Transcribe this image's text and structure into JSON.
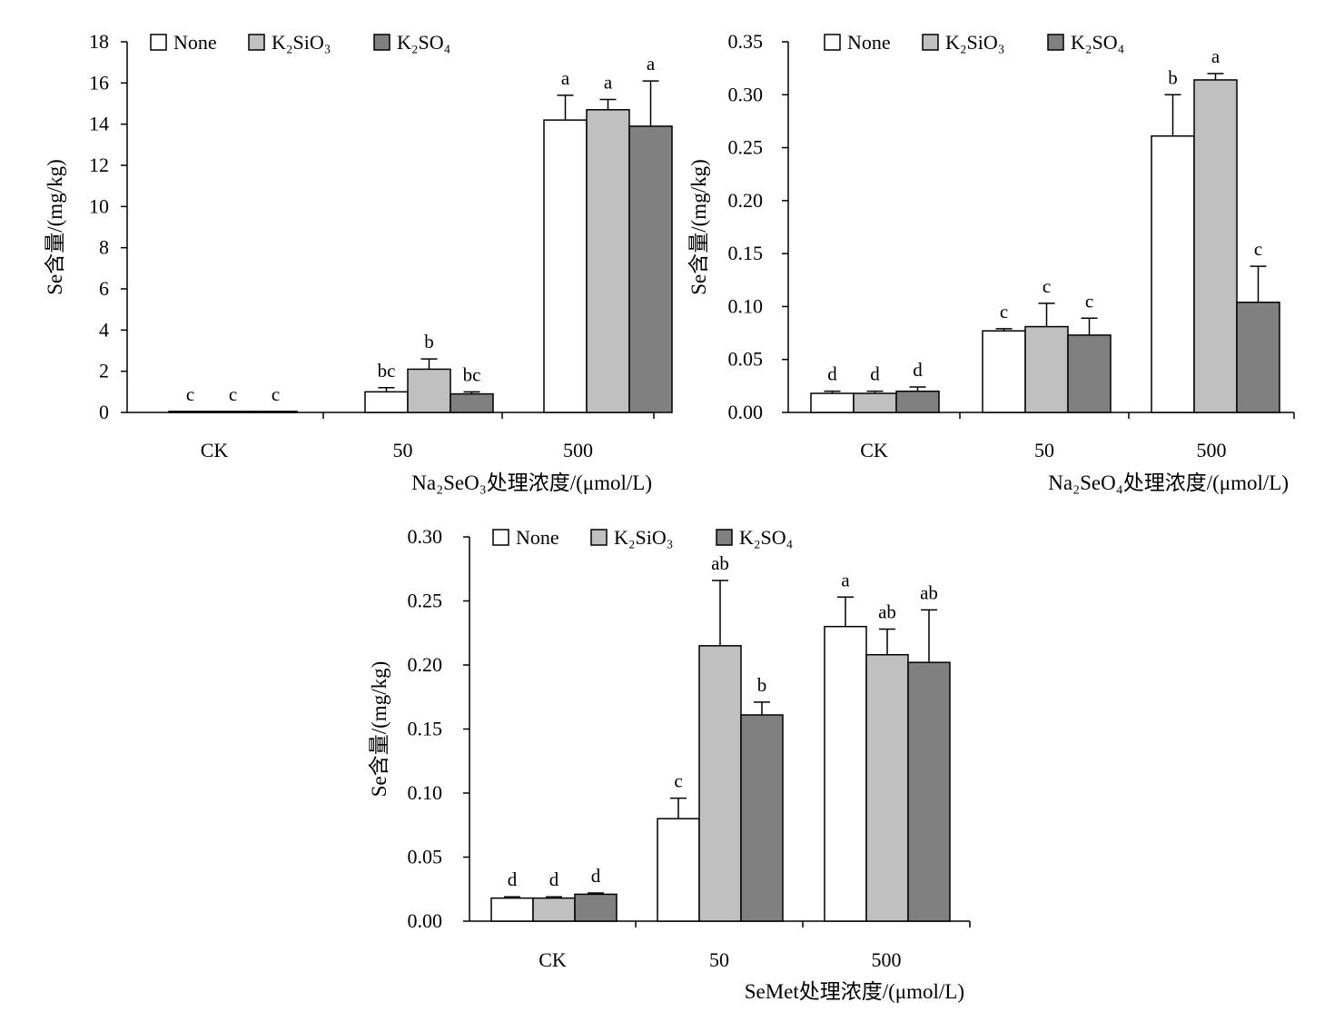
{
  "series_styles": [
    {
      "key": "none",
      "name": "None",
      "color": "#ffffff"
    },
    {
      "key": "k2sio3",
      "name": "K₂SiO₃",
      "color": "#c0c0c0"
    },
    {
      "key": "k2so4",
      "name": "K₂SO₄",
      "color": "#808080"
    }
  ],
  "chart_data": [
    {
      "type": "bar",
      "ylabel": "Se含量/(mg/kg)",
      "xlabel": "Na₂SeO₃处理浓度/(μmol/L)",
      "ylim": [
        0,
        18
      ],
      "yticks": [
        "0",
        "2",
        "4",
        "6",
        "8",
        "10",
        "12",
        "14",
        "16",
        "18"
      ],
      "categories": [
        "CK",
        "50",
        "500"
      ],
      "legend_position": "top-left",
      "grid": false,
      "series": [
        {
          "name": "None",
          "values": [
            0.05,
            1.0,
            14.2
          ],
          "errors": [
            0,
            0.2,
            1.2
          ],
          "letters": [
            "c",
            "bc",
            "a"
          ]
        },
        {
          "name": "K₂SiO₃",
          "values": [
            0.05,
            2.1,
            14.7
          ],
          "errors": [
            0,
            0.5,
            0.5
          ],
          "letters": [
            "c",
            "b",
            "a"
          ]
        },
        {
          "name": "K₂SO₄",
          "values": [
            0.05,
            0.9,
            13.9
          ],
          "errors": [
            0,
            0.1,
            2.2
          ],
          "letters": [
            "c",
            "bc",
            "a"
          ]
        }
      ]
    },
    {
      "type": "bar",
      "ylabel": "Se含量/(mg/kg)",
      "xlabel": "Na₂SeO₄处理浓度/(μmol/L)",
      "ylim": [
        0,
        0.35
      ],
      "yticks": [
        "0.00",
        "0.05",
        "0.10",
        "0.15",
        "0.20",
        "0.25",
        "0.30",
        "0.35"
      ],
      "categories": [
        "CK",
        "50",
        "500"
      ],
      "legend_position": "top-left",
      "grid": false,
      "series": [
        {
          "name": "None",
          "values": [
            0.018,
            0.077,
            0.261
          ],
          "errors": [
            0.002,
            0.002,
            0.039
          ],
          "letters": [
            "d",
            "c",
            "b"
          ]
        },
        {
          "name": "K₂SiO₃",
          "values": [
            0.018,
            0.081,
            0.314
          ],
          "errors": [
            0.002,
            0.022,
            0.006
          ],
          "letters": [
            "d",
            "c",
            "a"
          ]
        },
        {
          "name": "K₂SO₄",
          "values": [
            0.02,
            0.073,
            0.104
          ],
          "errors": [
            0.004,
            0.016,
            0.034
          ],
          "letters": [
            "d",
            "c",
            "c"
          ]
        }
      ]
    },
    {
      "type": "bar",
      "ylabel": "Se含量/(mg/kg)",
      "xlabel": "SeMet处理浓度/(μmol/L)",
      "ylim": [
        0,
        0.3
      ],
      "yticks": [
        "0.00",
        "0.05",
        "0.10",
        "0.15",
        "0.20",
        "0.25",
        "0.30"
      ],
      "categories": [
        "CK",
        "50",
        "500"
      ],
      "legend_position": "top-left",
      "grid": false,
      "series": [
        {
          "name": "None",
          "values": [
            0.018,
            0.08,
            0.23
          ],
          "errors": [
            0.001,
            0.016,
            0.023
          ],
          "letters": [
            "d",
            "c",
            "a"
          ]
        },
        {
          "name": "K₂SiO₃",
          "values": [
            0.018,
            0.215,
            0.208
          ],
          "errors": [
            0.001,
            0.051,
            0.02
          ],
          "letters": [
            "d",
            "ab",
            "ab"
          ]
        },
        {
          "name": "K₂SO₄",
          "values": [
            0.021,
            0.161,
            0.202
          ],
          "errors": [
            0.001,
            0.01,
            0.041
          ],
          "letters": [
            "d",
            "b",
            "ab"
          ]
        }
      ]
    }
  ]
}
